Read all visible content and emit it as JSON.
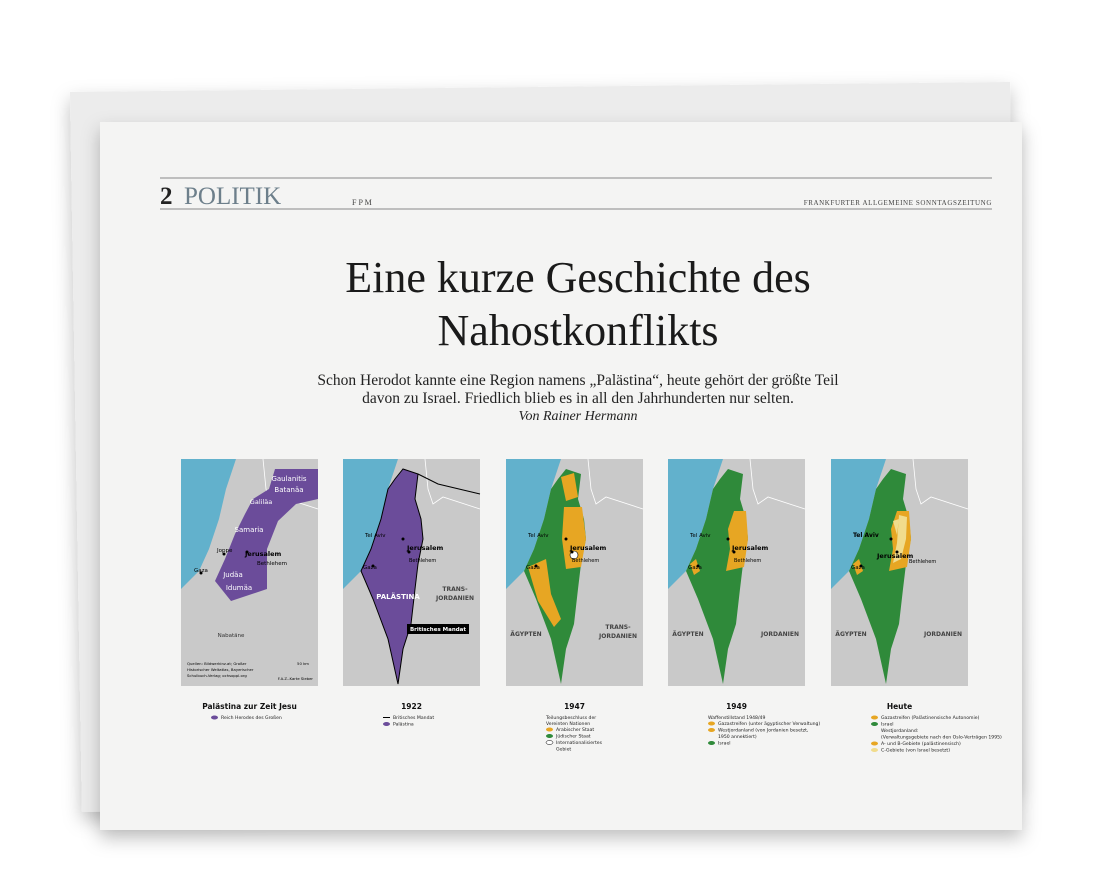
{
  "header": {
    "page": "2",
    "section": "POLITIK",
    "edition": "F P M",
    "paper": "FRANKFURTER ALLGEMEINE SONNTAGSZEITUNG"
  },
  "headline": [
    "Eine kurze Geschichte des",
    "Nahostkonflikts"
  ],
  "subtitle": [
    "Schon Herodot kannte eine Region namens „Palästina“, heute gehört der größte Teil",
    "davon zu Israel. Friedlich blieb es in all den Jahrhunderten nur selten."
  ],
  "byline": "Von Rainer Hermann",
  "maps": [
    {
      "labels": [
        "Gaulanitis",
        "Batanäa",
        "Galiläa",
        "Samaria",
        "Joppe",
        "Jerusalem",
        "Judäa",
        "Gaza",
        "Bethlehem",
        "Idumäa",
        "Nabatäne",
        "Quellen: Bildwerkinz.at; Großer",
        "Historischer Weltatlas, Bayerischer",
        "Schulbuch-Verlag; ochsoppl.org",
        "50 km",
        "F.A.Z.-Karte Sieber"
      ],
      "caption": "Palästina zur Zeit Jesu",
      "legend": [
        "Reich Herodes des Großen"
      ]
    },
    {
      "labels": [
        "Tel Aviv",
        "Jerusalem",
        "Bethlehem",
        "Gaza",
        "PALÄSTINA",
        "TRANS-",
        "JORDANIEN",
        "Britisches Mandat"
      ],
      "caption": "1922",
      "legend": [
        "Britisches Mandat",
        "Palästina"
      ]
    },
    {
      "labels": [
        "Tel Aviv",
        "Jerusalem",
        "Bethlehem",
        "Gaza",
        "ÄGYPTEN",
        "TRANS-",
        "JORDANIEN"
      ],
      "caption": "1947",
      "note": [
        "Teilungsbeschluss der",
        "Vereinten Nationen"
      ],
      "legend": [
        "Arabischer Staat",
        "Jüdischer Staat",
        "Internationalisiertes",
        "Gebiet"
      ]
    },
    {
      "labels": [
        "Tel Aviv",
        "Jerusalem",
        "Bethlehem",
        "Gaza",
        "ÄGYPTEN",
        "JORDANIEN"
      ],
      "caption": "1949",
      "note": [
        "Waffenstillstand 1948/49"
      ],
      "legend": [
        "Gazastreifen (unter ägyptischer Verwaltung)",
        "Westjordanland (von Jordanien besetzt,",
        "1950 annektiert)",
        "Israel"
      ]
    },
    {
      "labels": [
        "Tel Aviv",
        "Jerusalem",
        "Bethlehem",
        "Gaza",
        "ÄGYPTEN",
        "JORDANIEN"
      ],
      "caption": "Heute",
      "legend": [
        "Gazastreifen (Palästinensische Autonomie)",
        "Israel",
        "Westjordanland:",
        "(Verwaltungsgebiete nach den Oslo-Verträgen 1995)",
        "A- und B-Gebiete (palästinensisch)",
        "C-Gebiete (von Israel besetzt)"
      ]
    }
  ]
}
